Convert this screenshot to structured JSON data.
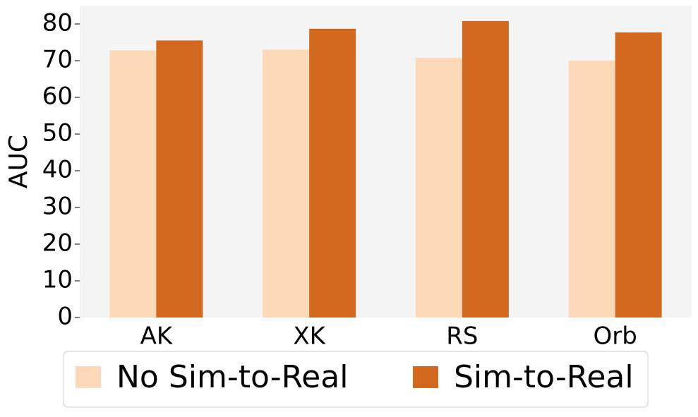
{
  "chart_data": {
    "type": "bar",
    "y_label": "AUC",
    "categories": [
      "AK",
      "XK",
      "RS",
      "Orb"
    ],
    "series": [
      {
        "name": "No Sim-to-Real",
        "color": "#fdd9b9",
        "values": [
          72.8,
          73.0,
          70.8,
          70.0
        ]
      },
      {
        "name": "Sim-to-Real",
        "color": "#d2691e",
        "values": [
          75.5,
          78.7,
          80.8,
          77.7
        ]
      }
    ],
    "ylim": [
      0,
      85
    ],
    "yticks": [
      0,
      10,
      20,
      30,
      40,
      50,
      60,
      70,
      80
    ]
  }
}
